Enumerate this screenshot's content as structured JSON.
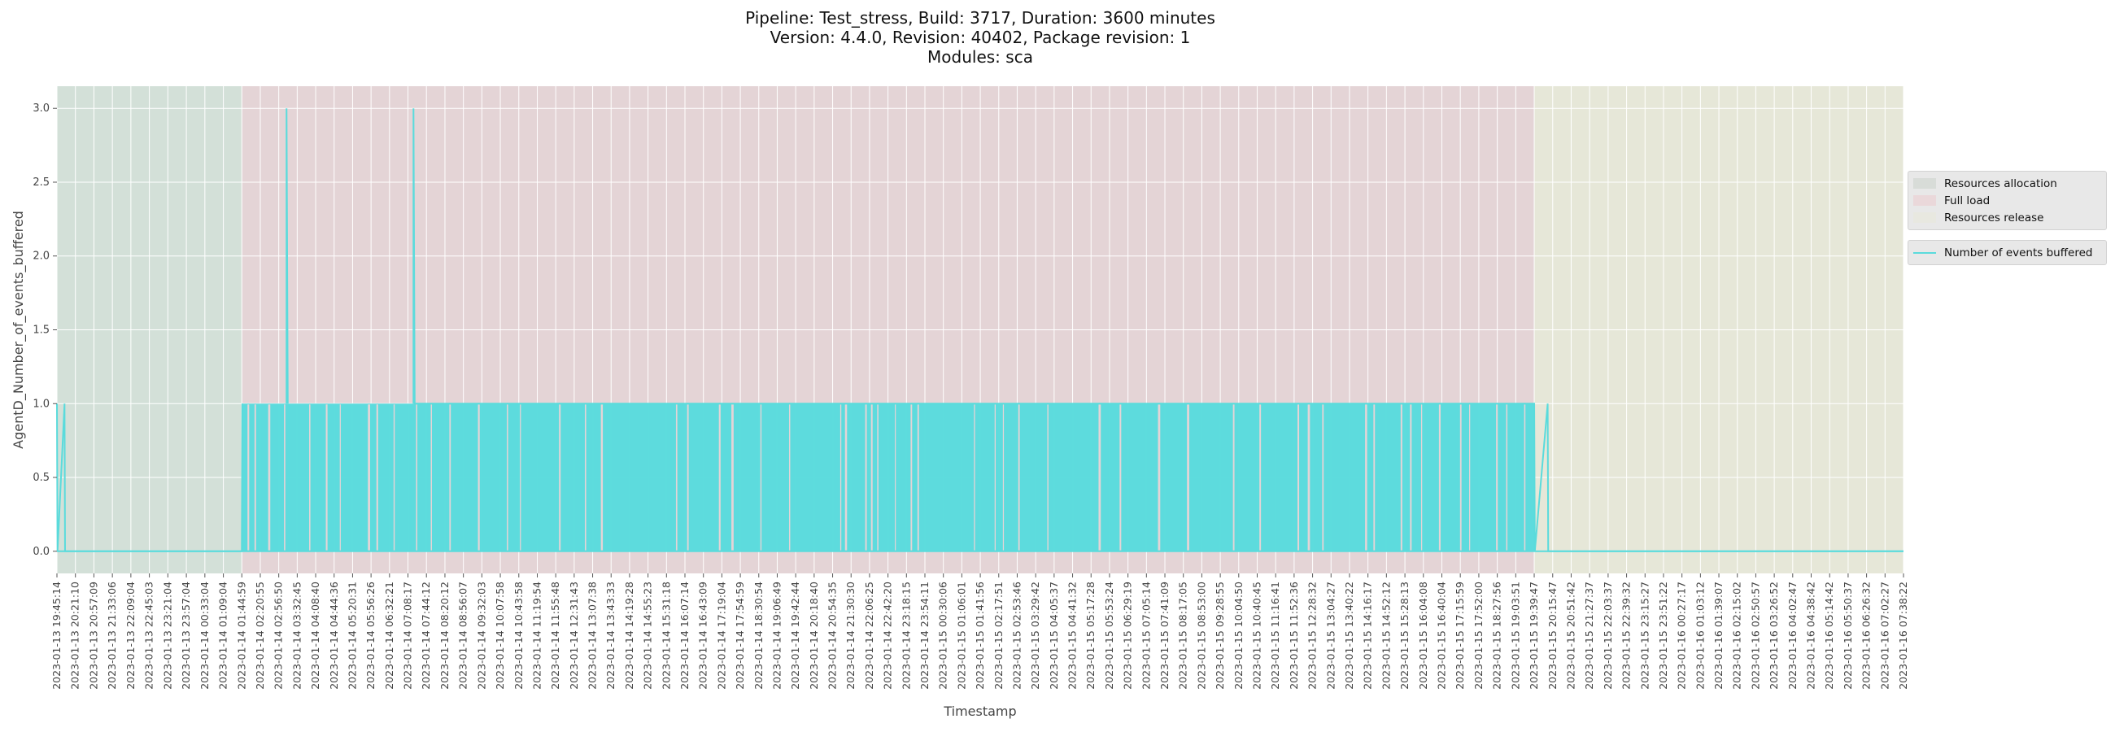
{
  "chart_data": {
    "type": "line",
    "title": [
      "Pipeline: Test_stress, Build: 3717, Duration: 3600 minutes",
      "Version: 4.4.0, Revision: 40402, Package revision: 1",
      "Modules: sca"
    ],
    "xlabel": "Timestamp",
    "ylabel": "AgentD_Number_of_events_buffered",
    "ylim": [
      -0.15,
      3.15
    ],
    "yticks": [
      0.0,
      0.5,
      1.0,
      1.5,
      2.0,
      2.5,
      3.0
    ],
    "ytick_labels": [
      "0.0",
      "0.5",
      "1.0",
      "1.5",
      "2.0",
      "2.5",
      "3.0"
    ],
    "grid": true,
    "legend_position": "right",
    "xtick_labels": [
      "2023-01-13 19:45:14",
      "2023-01-13 20:21:10",
      "2023-01-13 20:57:09",
      "2023-01-13 21:33:06",
      "2023-01-13 22:09:04",
      "2023-01-13 22:45:03",
      "2023-01-13 23:21:04",
      "2023-01-13 23:57:04",
      "2023-01-14 00:33:04",
      "2023-01-14 01:09:04",
      "2023-01-14 01:44:59",
      "2023-01-14 02:20:55",
      "2023-01-14 02:56:50",
      "2023-01-14 03:32:45",
      "2023-01-14 04:08:40",
      "2023-01-14 04:44:36",
      "2023-01-14 05:20:31",
      "2023-01-14 05:56:26",
      "2023-01-14 06:32:21",
      "2023-01-14 07:08:17",
      "2023-01-14 07:44:12",
      "2023-01-14 08:20:12",
      "2023-01-14 08:56:07",
      "2023-01-14 09:32:03",
      "2023-01-14 10:07:58",
      "2023-01-14 10:43:58",
      "2023-01-14 11:19:54",
      "2023-01-14 11:55:48",
      "2023-01-14 12:31:43",
      "2023-01-14 13:07:38",
      "2023-01-14 13:43:33",
      "2023-01-14 14:19:28",
      "2023-01-14 14:55:23",
      "2023-01-14 15:31:18",
      "2023-01-14 16:07:14",
      "2023-01-14 16:43:09",
      "2023-01-14 17:19:04",
      "2023-01-14 17:54:59",
      "2023-01-14 18:30:54",
      "2023-01-14 19:06:49",
      "2023-01-14 19:42:44",
      "2023-01-14 20:18:40",
      "2023-01-14 20:54:35",
      "2023-01-14 21:30:30",
      "2023-01-14 22:06:25",
      "2023-01-14 22:42:20",
      "2023-01-14 23:18:15",
      "2023-01-14 23:54:11",
      "2023-01-15 00:30:06",
      "2023-01-15 01:06:01",
      "2023-01-15 01:41:56",
      "2023-01-15 02:17:51",
      "2023-01-15 02:53:46",
      "2023-01-15 03:29:42",
      "2023-01-15 04:05:37",
      "2023-01-15 04:41:32",
      "2023-01-15 05:17:28",
      "2023-01-15 05:53:24",
      "2023-01-15 06:29:19",
      "2023-01-15 07:05:14",
      "2023-01-15 07:41:09",
      "2023-01-15 08:17:05",
      "2023-01-15 08:53:00",
      "2023-01-15 09:28:55",
      "2023-01-15 10:04:50",
      "2023-01-15 10:40:45",
      "2023-01-15 11:16:41",
      "2023-01-15 11:52:36",
      "2023-01-15 12:28:32",
      "2023-01-15 13:04:27",
      "2023-01-15 13:40:22",
      "2023-01-15 14:16:17",
      "2023-01-15 14:52:12",
      "2023-01-15 15:28:13",
      "2023-01-15 16:04:08",
      "2023-01-15 16:40:04",
      "2023-01-15 17:15:59",
      "2023-01-15 17:52:00",
      "2023-01-15 18:27:56",
      "2023-01-15 19:03:51",
      "2023-01-15 19:39:47",
      "2023-01-15 20:15:47",
      "2023-01-15 20:51:42",
      "2023-01-15 21:27:37",
      "2023-01-15 22:03:37",
      "2023-01-15 22:39:32",
      "2023-01-15 23:15:27",
      "2023-01-15 23:51:22",
      "2023-01-16 00:27:17",
      "2023-01-16 01:03:12",
      "2023-01-16 01:39:07",
      "2023-01-16 02:15:02",
      "2023-01-16 02:50:57",
      "2023-01-16 03:26:52",
      "2023-01-16 04:02:47",
      "2023-01-16 04:38:42",
      "2023-01-16 05:14:42",
      "2023-01-16 05:50:37",
      "2023-01-16 06:26:32",
      "2023-01-16 07:02:27",
      "2023-01-16 07:38:22"
    ],
    "phases": [
      {
        "name": "Resources allocation",
        "from": "2023-01-13 19:45:14",
        "to": "2023-01-14 01:44:59",
        "color": "#d3e0d8"
      },
      {
        "name": "Full load",
        "from": "2023-01-14 01:44:59",
        "to": "2023-01-15 19:39:47",
        "color": "#e4d4d6"
      },
      {
        "name": "Resources release",
        "from": "2023-01-15 19:39:47",
        "to": "2023-01-16 07:38:22",
        "color": "#e6e7d8"
      }
    ],
    "series": [
      {
        "name": "Number of events buffered",
        "color": "#5adbdc",
        "points": [
          {
            "x": "2023-01-13 19:45:14",
            "y": 1
          },
          {
            "x": "2023-01-13 19:46:20",
            "y": 0
          },
          {
            "x": "2023-01-13 20:00:00",
            "y": 1
          },
          {
            "x": "2023-01-13 20:01:00",
            "y": 0
          },
          {
            "x": "2023-01-14 01:44:59",
            "y": 0
          },
          {
            "x": "2023-01-14 01:46:00",
            "y": 1
          },
          {
            "x": "2023-01-14 03:12:00",
            "y": 3
          },
          {
            "x": "2023-01-14 07:19:00",
            "y": 3
          },
          {
            "x": "2023-01-15 19:39:47",
            "y": 1
          },
          {
            "x": "2023-01-15 19:41:00",
            "y": 0
          },
          {
            "x": "2023-01-15 20:06:00",
            "y": 1
          },
          {
            "x": "2023-01-15 20:07:00",
            "y": 0
          },
          {
            "x": "2023-01-16 07:38:22",
            "y": 0
          }
        ]
      }
    ]
  },
  "legend": {
    "phases": [
      "Resources allocation",
      "Full load",
      "Resources release"
    ],
    "series": [
      "Number of events buffered"
    ]
  }
}
